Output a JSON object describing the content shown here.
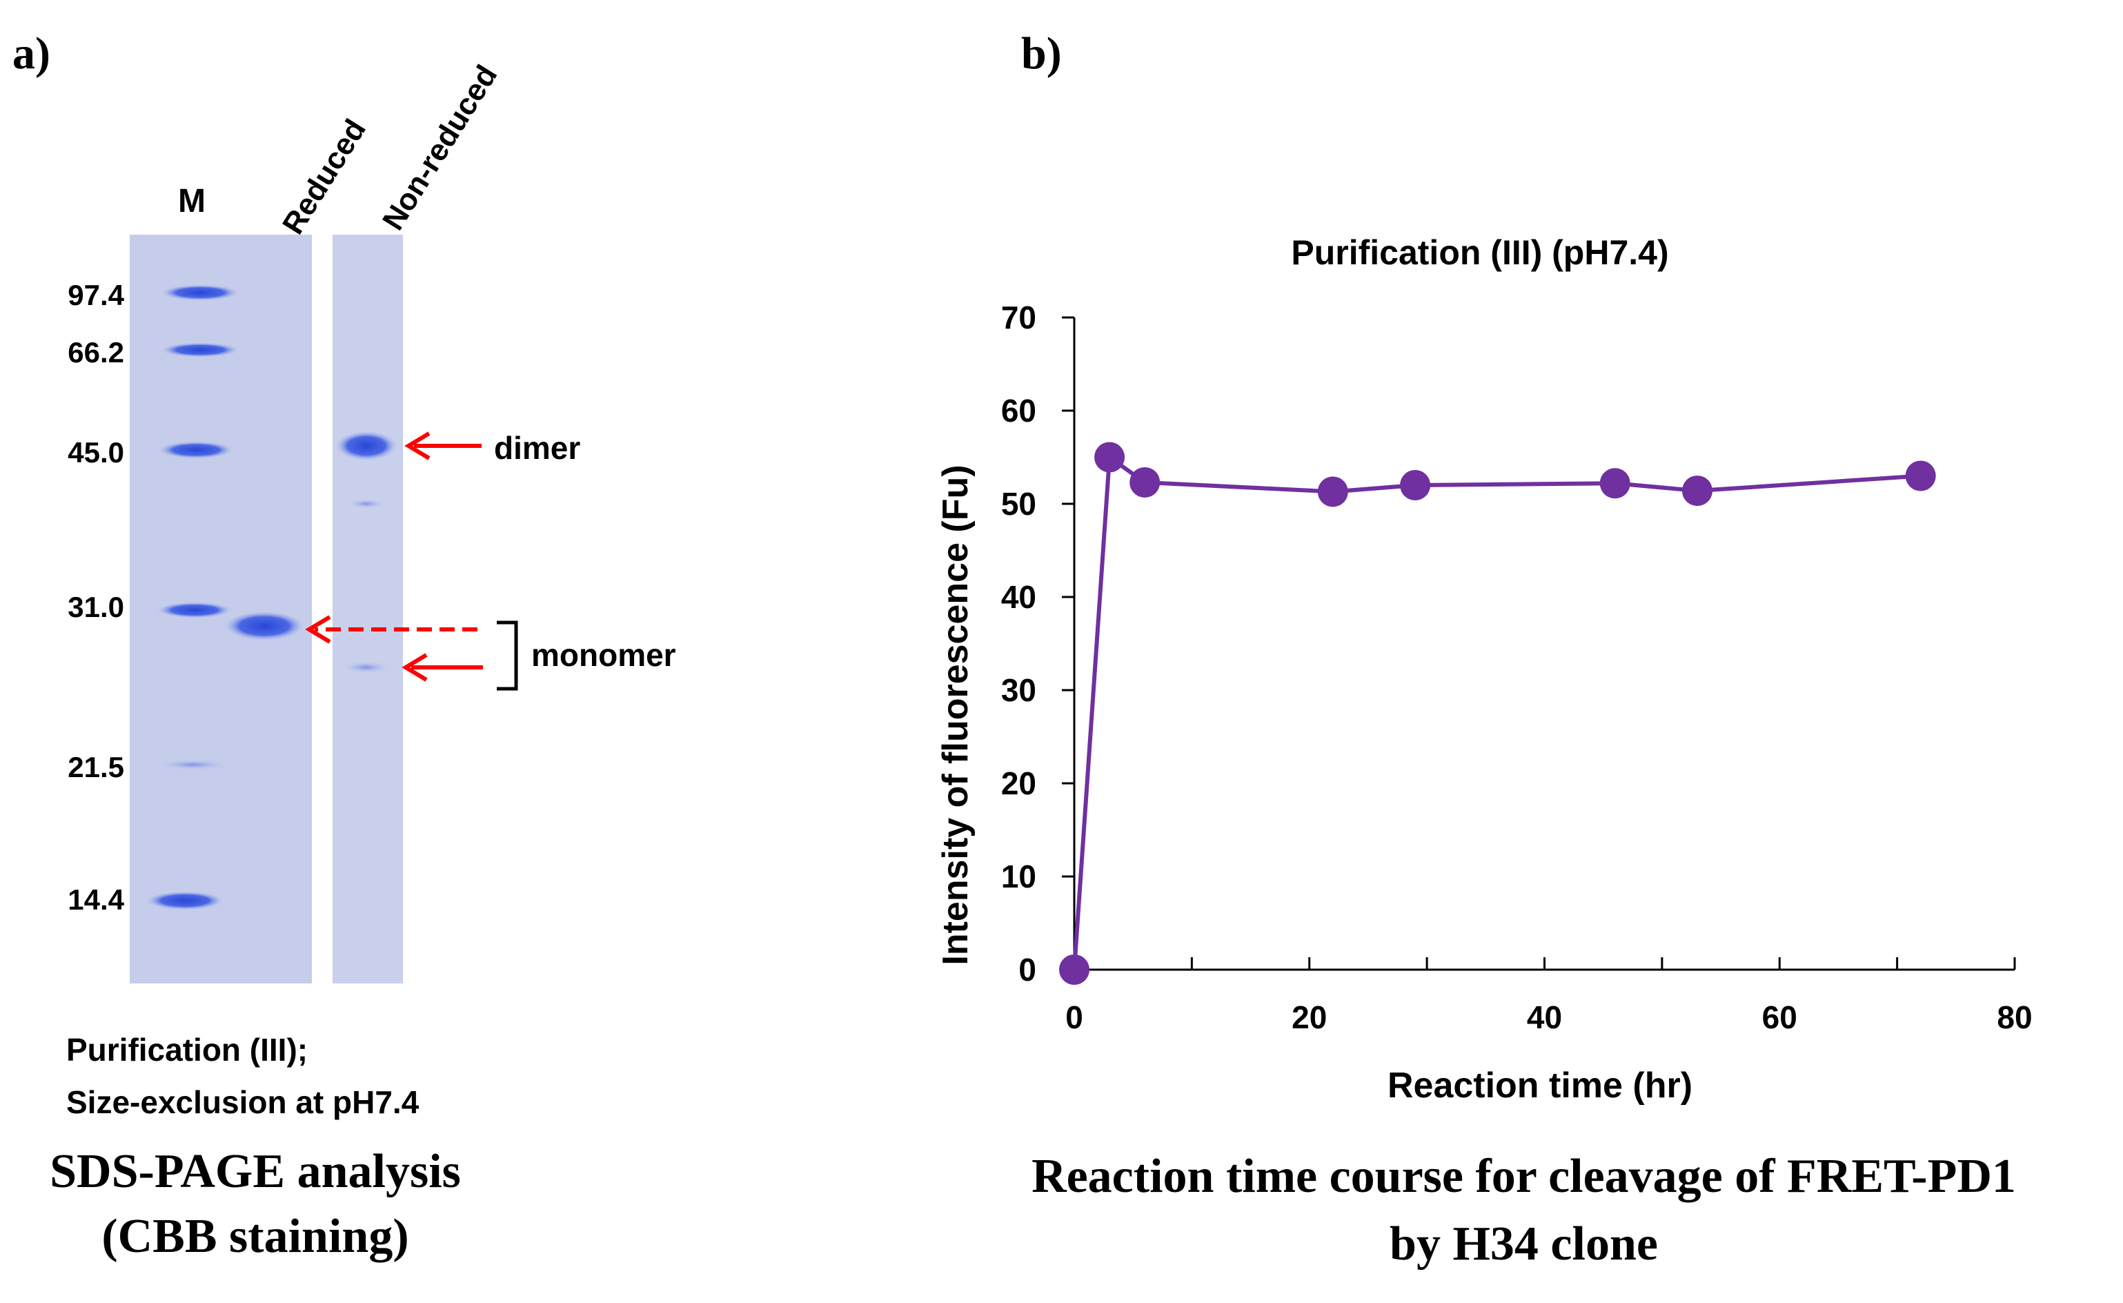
{
  "panel_a": {
    "label": "a)",
    "lane_labels": [
      "M",
      "Reduced",
      "Non-reduced"
    ],
    "marker_weights": [
      "97.4",
      "66.2",
      "45.0",
      "31.0",
      "21.5",
      "14.4"
    ],
    "annotations": {
      "dimer": "dimer",
      "monomer": "monomer"
    },
    "caption_line1": "Purification (III);",
    "caption_line2": "Size-exclusion at pH7.4",
    "title_line1": "SDS-PAGE analysis",
    "title_line2": "(CBB staining)",
    "colors": {
      "gel": "#c6cdeb",
      "band": "#3f5ee0",
      "arrow": "#ff0000"
    }
  },
  "panel_b": {
    "label": "b)",
    "title_line1": "Reaction time course for cleavage of FRET-PD1",
    "title_line2": "by H34 clone"
  },
  "chart_data": {
    "type": "line",
    "title": "Purification (III) (pH7.4)",
    "xlabel": "Reaction time (hr)",
    "ylabel": "Intensity of fluorescence (Fu)",
    "xlim": [
      0,
      80
    ],
    "ylim": [
      0,
      70
    ],
    "xticks": [
      0,
      20,
      40,
      60,
      80
    ],
    "yticks": [
      0,
      10,
      20,
      30,
      40,
      50,
      60,
      70
    ],
    "series": [
      {
        "name": "H34 clone",
        "color": "#7030a0",
        "x": [
          0,
          3,
          6,
          22,
          29,
          46,
          53,
          72
        ],
        "y": [
          0,
          55,
          52.3,
          51.3,
          52,
          52.2,
          51.4,
          53
        ]
      }
    ]
  }
}
